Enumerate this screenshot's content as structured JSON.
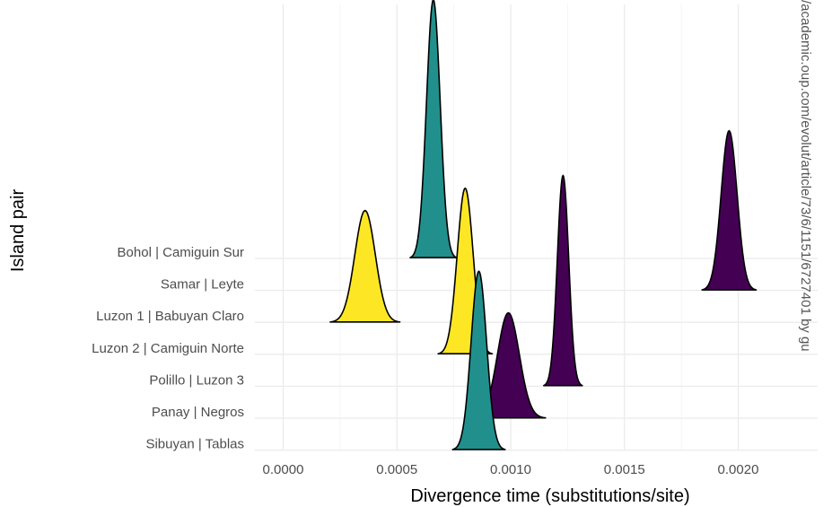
{
  "chart_data": {
    "type": "ridgeline",
    "xlabel": "Divergence time (substitutions/site)",
    "ylabel": "Island pair",
    "xlim": [
      -0.0001,
      0.00205
    ],
    "x_ticks": [
      0.0,
      0.0005,
      0.001,
      0.0015,
      0.002
    ],
    "x_tick_labels": [
      "0.0000",
      "0.0005",
      "0.0010",
      "0.0015",
      "0.0020"
    ],
    "grid": true,
    "categories": [
      "Bohol | Camiguin Sur",
      "Samar | Leyte",
      "Luzon 1 | Babuyan Claro",
      "Luzon 2 | Camiguin Norte",
      "Polillo | Luzon 3",
      "Panay | Negros",
      "Sibuyan | Tablas"
    ],
    "colors": {
      "purple": "#440154",
      "teal": "#21908c",
      "yellow": "#fde725",
      "grid": "#ebebeb"
    },
    "series": [
      {
        "category": "Bohol | Camiguin Sur",
        "peak": 0.00066,
        "spread": 3e-05,
        "height": 8.1,
        "color": "teal"
      },
      {
        "category": "Samar | Leyte",
        "peak": 0.00196,
        "spread": 3.5e-05,
        "height": 5.0,
        "color": "purple"
      },
      {
        "category": "Luzon 1 | Babuyan Claro",
        "peak": 0.00036,
        "spread": 4.5e-05,
        "height": 3.5,
        "color": "yellow"
      },
      {
        "category": "Luzon 2 | Camiguin Norte",
        "peak": 0.0008,
        "spread": 3.5e-05,
        "height": 5.2,
        "color": "yellow"
      },
      {
        "category": "Polillo | Luzon 3",
        "peak": 0.00123,
        "spread": 2.5e-05,
        "height": 6.6,
        "color": "purple"
      },
      {
        "category": "Panay | Negros",
        "peak": 0.00099,
        "spread": 4.8e-05,
        "height": 3.3,
        "color": "purple"
      },
      {
        "category": "Sibuyan | Tablas",
        "peak": 0.00086,
        "spread": 3.4e-05,
        "height": 5.6,
        "color": "teal"
      }
    ]
  },
  "watermark": "/academic.oup.com/evolut/article/73/6/1151/6727401 by gu"
}
